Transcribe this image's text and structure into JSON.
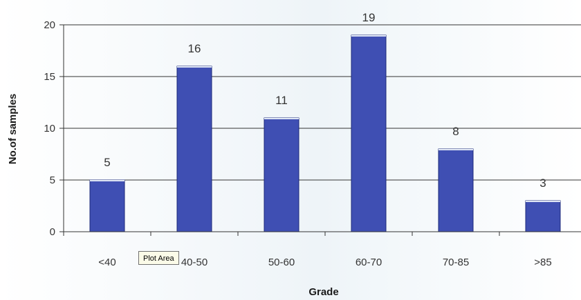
{
  "chart_data": {
    "type": "bar",
    "categories": [
      "<40",
      "40-50",
      "50-60",
      "60-70",
      "70-85",
      ">85"
    ],
    "values": [
      5,
      16,
      11,
      19,
      8,
      3
    ],
    "xlabel": "Grade",
    "ylabel": "No.of samples",
    "ylim": [
      0,
      20
    ],
    "yticks": [
      0,
      5,
      10,
      15,
      20
    ],
    "grid": true,
    "bar_color": "#3f4fb3",
    "bar_edge_color": "#1d2a7a",
    "legend": "none"
  },
  "tooltip": {
    "label": "Plot Area"
  }
}
